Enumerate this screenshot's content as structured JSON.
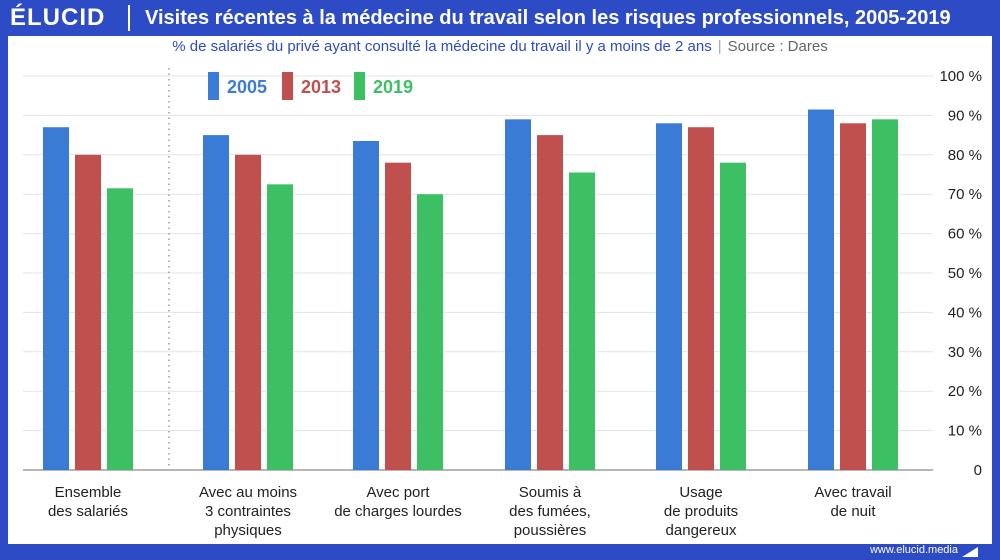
{
  "header": {
    "logo": "ÉLUCID",
    "title": "Visites récentes à la médecine du travail selon les risques professionnels, 2005-2019"
  },
  "subtitle": {
    "text": "% de salariés du privé ayant consulté la médecine du travail il y a moins de 2 ans",
    "separator": "|",
    "source": "Source : Dares"
  },
  "footer": {
    "url": "www.elucid.media"
  },
  "colors": {
    "brand": "#2e4bc6",
    "s2005": "#3a7bd5",
    "s2013": "#c0504d",
    "s2019": "#3cc063"
  },
  "chart_data": {
    "type": "bar",
    "categories": [
      [
        "Ensemble",
        "des salariés"
      ],
      [
        "Avec au moins",
        "3 contraintes",
        "physiques"
      ],
      [
        "Avec port",
        "de charges lourdes"
      ],
      [
        "Soumis à",
        "des fumées,",
        "poussières"
      ],
      [
        "Usage",
        "de produits",
        "dangereux"
      ],
      [
        "Avec travail",
        "de nuit"
      ]
    ],
    "series": [
      {
        "name": "2005",
        "color": "#3a7bd5",
        "values": [
          87,
          85,
          83.5,
          89,
          88,
          91.5
        ]
      },
      {
        "name": "2013",
        "color": "#c0504d",
        "values": [
          80,
          80,
          78,
          85,
          87,
          88
        ]
      },
      {
        "name": "2019",
        "color": "#3cc063",
        "values": [
          71.5,
          72.5,
          70,
          75.5,
          78,
          89
        ]
      }
    ],
    "ylim": [
      0,
      100
    ],
    "yticks": [
      "0",
      "10 %",
      "20 %",
      "30 %",
      "40 %",
      "50 %",
      "60 %",
      "70 %",
      "80 %",
      "90 %",
      "100 %"
    ],
    "grid": true,
    "legend": "top-left",
    "axis_position": "right"
  }
}
